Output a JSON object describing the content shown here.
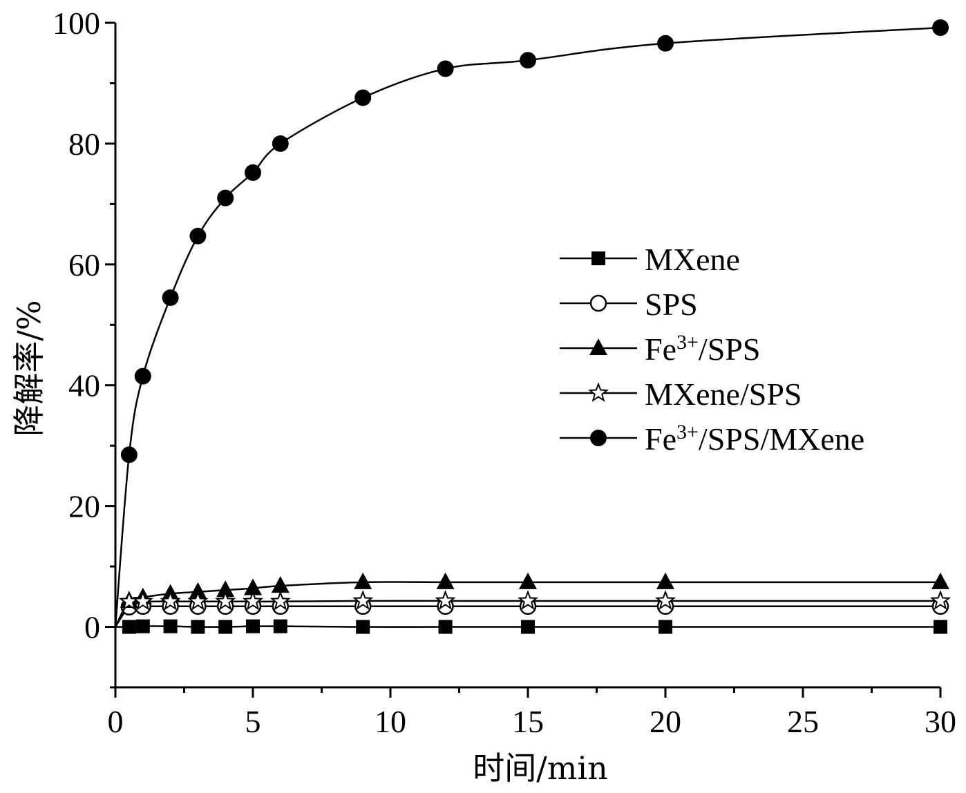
{
  "chart_data": {
    "type": "line",
    "title": "",
    "xlabel": "时间/min",
    "ylabel": "降解率/%",
    "xlim": [
      0,
      30
    ],
    "ylim": [
      -10,
      100
    ],
    "xticks": [
      0,
      5,
      10,
      15,
      20,
      25,
      30
    ],
    "yticks": [
      0,
      20,
      40,
      60,
      80,
      100
    ],
    "grid": false,
    "legend_position": "center-right",
    "series": [
      {
        "name": "MXene",
        "label_base": "MXene",
        "label_sup": "",
        "label_rest": "",
        "marker": "square",
        "x": [
          0,
          0.5,
          1,
          2,
          3,
          4,
          5,
          6,
          9,
          12,
          15,
          20,
          30
        ],
        "y": [
          0,
          0,
          0.1,
          0.1,
          0,
          0,
          0.1,
          0.1,
          0,
          0,
          0,
          0,
          0
        ]
      },
      {
        "name": "SPS",
        "label_base": "SPS",
        "label_sup": "",
        "label_rest": "",
        "marker": "circle-open",
        "x": [
          0,
          0.5,
          1,
          2,
          3,
          4,
          5,
          6,
          9,
          12,
          15,
          20,
          30
        ],
        "y": [
          0,
          3.3,
          3.4,
          3.4,
          3.4,
          3.4,
          3.4,
          3.4,
          3.4,
          3.4,
          3.4,
          3.4,
          3.4
        ]
      },
      {
        "name": "Fe3+/SPS",
        "label_base": "Fe",
        "label_sup": "3+",
        "label_rest": "/SPS",
        "marker": "triangle",
        "x": [
          0,
          0.5,
          1,
          2,
          3,
          4,
          5,
          6,
          9,
          12,
          15,
          20,
          30
        ],
        "y": [
          0,
          4.3,
          4.9,
          5.5,
          5.8,
          6.1,
          6.4,
          6.8,
          7.4,
          7.4,
          7.4,
          7.4,
          7.4
        ]
      },
      {
        "name": "MXene/SPS",
        "label_base": "MXene/SPS",
        "label_sup": "",
        "label_rest": "",
        "marker": "star-open",
        "x": [
          0,
          0.5,
          1,
          2,
          3,
          4,
          5,
          6,
          9,
          12,
          15,
          20,
          30
        ],
        "y": [
          0,
          4.2,
          4.2,
          4.2,
          4.2,
          4.2,
          4.2,
          4.2,
          4.3,
          4.3,
          4.3,
          4.3,
          4.3
        ]
      },
      {
        "name": "Fe3+/SPS/MXene",
        "label_base": "Fe",
        "label_sup": "3+",
        "label_rest": "/SPS/MXene",
        "marker": "circle",
        "x": [
          0,
          0.5,
          1,
          2,
          3,
          4,
          5,
          6,
          9,
          12,
          15,
          20,
          30
        ],
        "y": [
          0,
          28.5,
          41.5,
          54.5,
          64.7,
          71.0,
          75.2,
          80.0,
          87.6,
          92.4,
          93.8,
          96.6,
          99.2
        ]
      }
    ]
  }
}
